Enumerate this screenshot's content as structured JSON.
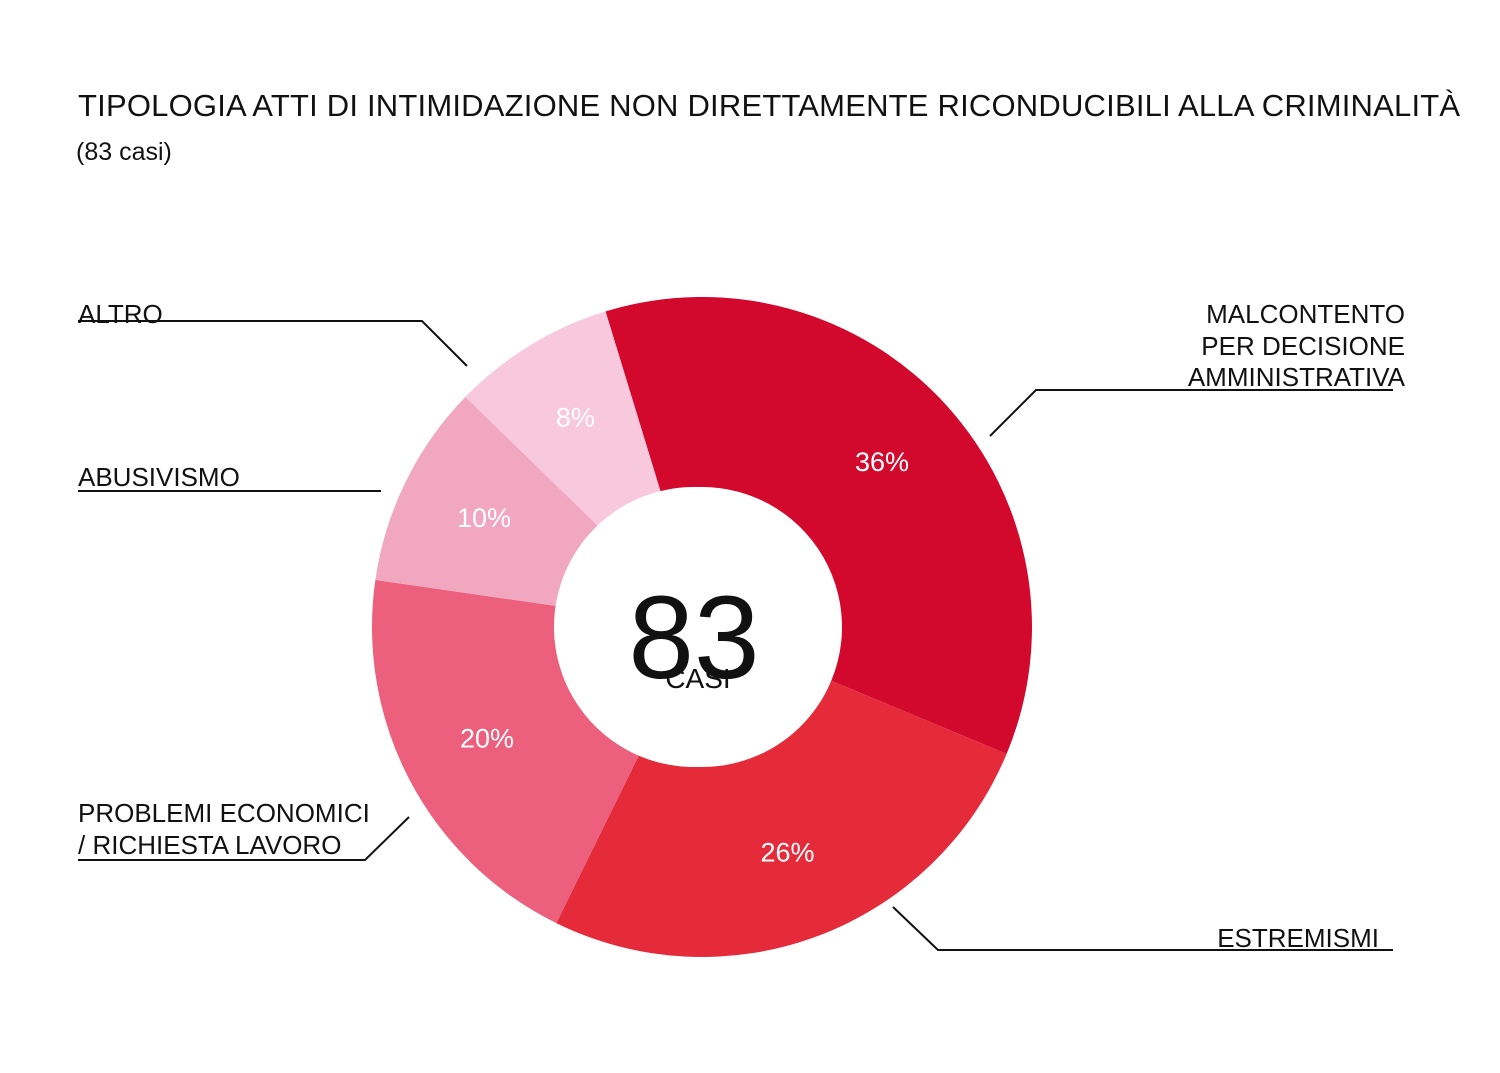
{
  "header": {
    "title": "TIPOLOGIA ATTI DI INTIMIDAZIONE NON DIRETTAMENTE RICONDUCIBILI ALLA CRIMINALITÀ",
    "subtitle": "(83 casi)"
  },
  "center": {
    "value": "83",
    "unit": "CASI"
  },
  "chart_data": {
    "type": "pie",
    "donut": true,
    "total": 83,
    "slices": [
      {
        "name": "MALCONTENTO PER DECISIONE AMMINISTRATIVA",
        "value": 36,
        "label": "36%",
        "color": "#d2092c",
        "lines": [
          "MALCONTENTO",
          "PER DECISIONE",
          "AMMINISTRATIVA"
        ]
      },
      {
        "name": "ESTREMISMI",
        "value": 26,
        "label": "26%",
        "color": "#e52b3a",
        "lines": [
          "ESTREMISMI"
        ]
      },
      {
        "name": "PROBLEMI ECONOMICI / RICHIESTA LAVORO",
        "value": 20,
        "label": "20%",
        "color": "#ec5f7d",
        "lines": [
          "PROBLEMI ECONOMICI",
          "/ RICHIESTA LAVORO"
        ]
      },
      {
        "name": "ABUSIVISMO",
        "value": 10,
        "label": "10%",
        "color": "#f2a7c1",
        "lines": [
          "ABUSIVISMO"
        ]
      },
      {
        "name": "ALTRO",
        "value": 8,
        "label": "8%",
        "color": "#f8c8dc",
        "lines": [
          "ALTRO"
        ]
      }
    ]
  }
}
